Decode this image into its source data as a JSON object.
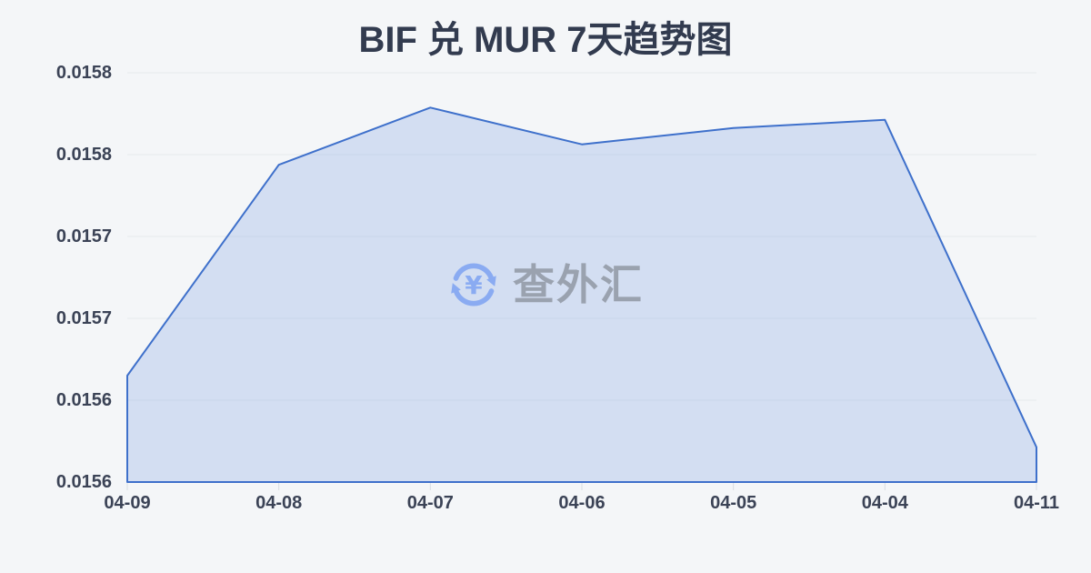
{
  "watermark": {
    "text": "查外汇",
    "icon": "currency-exchange-icon"
  },
  "colors": {
    "background": "#f4f6f8",
    "title_text": "#323b4f",
    "axis_label_text": "#3b4356",
    "gridline": "#e6e9ed",
    "axis_tick": "#d9dde2",
    "line": "#3e70cb",
    "area_fill": "rgba(125,160,226,0.28)",
    "watermark_icon_blue": "#8aabf2",
    "watermark_text_gray": "#9aa2af"
  },
  "chart_data": {
    "type": "area",
    "title": "BIF 兑 MUR 7天趋势图",
    "categories": [
      "04-09",
      "04-08",
      "04-07",
      "04-06",
      "04-05",
      "04-04",
      "04-11"
    ],
    "values": [
      0.015652,
      0.015755,
      0.015783,
      0.015765,
      0.015773,
      0.015777,
      0.015617
    ],
    "xlabel": "",
    "ylabel": "",
    "ylim": [
      0.0156,
      0.0158
    ],
    "y_ticks": [
      0.0158,
      0.01576,
      0.01572,
      0.01568,
      0.01564,
      0.0156
    ],
    "y_tick_labels": [
      "0.0158",
      "0.0158",
      "0.0157",
      "0.0157",
      "0.0156",
      "0.0156"
    ],
    "grid": true,
    "legend": "none"
  }
}
